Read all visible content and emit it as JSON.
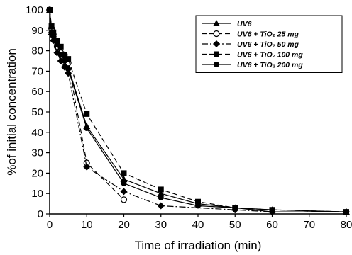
{
  "chart_data": {
    "type": "line",
    "xlabel": "Time of irradiation (min)",
    "ylabel": "%of initial concentration",
    "xlim": [
      0,
      80
    ],
    "ylim": [
      0,
      100
    ],
    "xticks": [
      0,
      10,
      20,
      30,
      40,
      50,
      60,
      70,
      80
    ],
    "yticks": [
      0,
      10,
      20,
      30,
      40,
      50,
      60,
      70,
      80,
      90,
      100
    ],
    "grid": false,
    "legend_position": "top-right",
    "series": [
      {
        "name": "UV6",
        "marker": "triangle",
        "line": "solid",
        "x": [
          0,
          0.5,
          1,
          2,
          3,
          4,
          5,
          10,
          20,
          30,
          40,
          50,
          60,
          80
        ],
        "y": [
          100,
          90,
          88,
          84,
          80,
          76,
          72,
          43,
          17,
          10,
          5,
          3,
          2,
          1
        ]
      },
      {
        "name": "UV6 + TiO₂ 25 mg",
        "marker": "circle-open",
        "line": "dashed",
        "x": [
          0,
          0.5,
          1,
          2,
          3,
          4,
          5,
          10,
          20
        ],
        "y": [
          100,
          91,
          88,
          82,
          79,
          78,
          74,
          25,
          7
        ]
      },
      {
        "name": "UV6 + TiO₂ 50 mg",
        "marker": "diamond",
        "line": "dashdot",
        "x": [
          0,
          0.5,
          1,
          2,
          3,
          4,
          5,
          10,
          20,
          30,
          50,
          60,
          80
        ],
        "y": [
          100,
          88,
          85,
          79,
          75,
          72,
          69,
          23,
          11,
          4,
          2,
          1,
          1
        ]
      },
      {
        "name": "UV6 + TiO₂ 100 mg",
        "marker": "square",
        "line": "dashed",
        "x": [
          0,
          0.5,
          1,
          2,
          3,
          4,
          5,
          10,
          20,
          30,
          40,
          50,
          60,
          80
        ],
        "y": [
          100,
          92,
          89,
          85,
          82,
          78,
          76,
          49,
          20,
          12,
          6,
          3,
          2,
          1
        ]
      },
      {
        "name": "UV6 + TiO₂ 200 mg",
        "marker": "circle",
        "line": "solid",
        "x": [
          0,
          0.5,
          1,
          2,
          3,
          4,
          5,
          10,
          20,
          30,
          40,
          50,
          60,
          80
        ],
        "y": [
          100,
          89,
          87,
          83,
          78,
          75,
          71,
          42,
          15,
          8,
          4,
          3,
          1,
          1
        ]
      }
    ]
  }
}
